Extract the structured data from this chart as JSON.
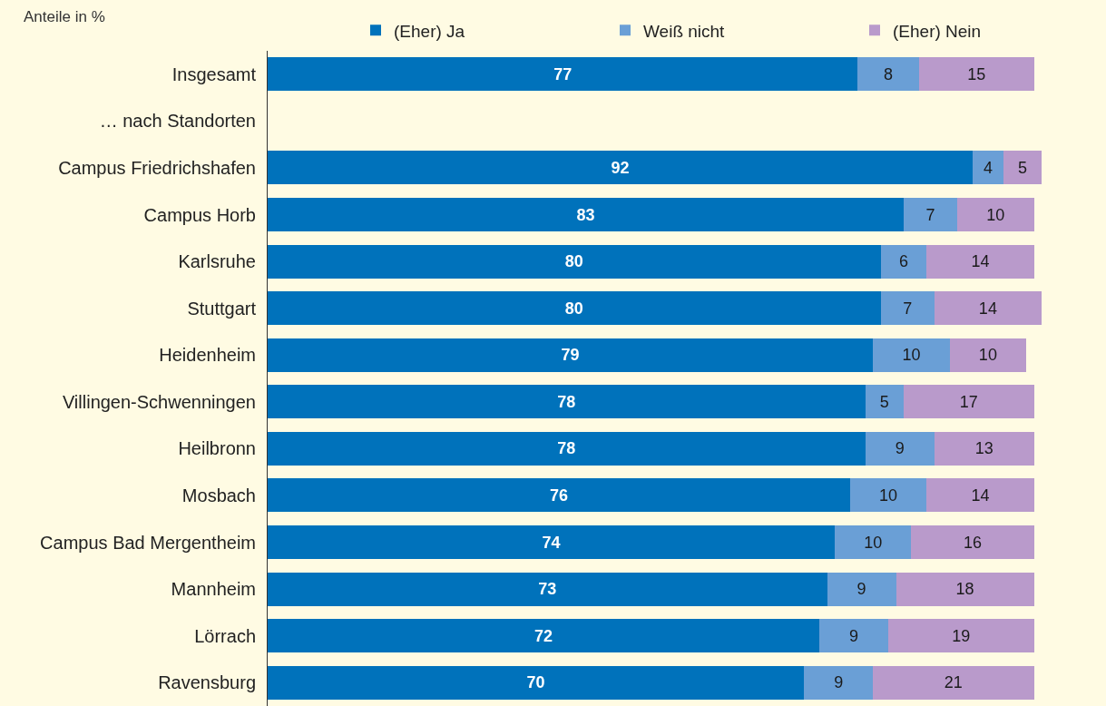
{
  "chart_data": {
    "type": "bar",
    "orientation": "horizontal",
    "stacked": true,
    "data_labels": true,
    "legend": "top",
    "tick_labels": "y",
    "annotations": [
      "Anteile in %"
    ],
    "categories": [
      "Insgesamt",
      "… nach Standorten",
      "Campus Friedrichshafen",
      "Campus Horb",
      "Karlsruhe",
      "Stuttgart",
      "Heidenheim",
      "Villingen-Schwenningen",
      "Heilbronn",
      "Mosbach",
      "Campus Bad Mergentheim",
      "Mannheim",
      "Lörrach",
      "Ravensburg"
    ],
    "xlim": [
      0,
      101
    ],
    "series": [
      {
        "name": "(Eher) Ja",
        "color": "#0072bb",
        "values": [
          77,
          null,
          92,
          83,
          80,
          80,
          79,
          78,
          78,
          76,
          74,
          73,
          72,
          70
        ]
      },
      {
        "name": "Weiß nicht",
        "color": "#6a9fd6",
        "values": [
          8,
          null,
          4,
          7,
          6,
          7,
          10,
          5,
          9,
          10,
          10,
          9,
          9,
          9
        ]
      },
      {
        "name": "(Eher) Nein",
        "color": "#b99acb",
        "values": [
          15,
          null,
          5,
          10,
          14,
          14,
          10,
          17,
          13,
          14,
          16,
          18,
          19,
          21
        ]
      }
    ]
  }
}
